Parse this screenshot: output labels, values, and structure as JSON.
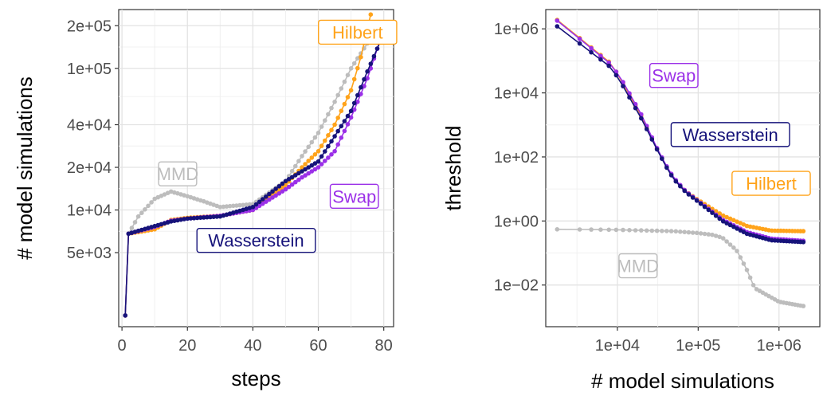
{
  "colors": {
    "Wasserstein": "#16137a",
    "Swap": "#9b30e8",
    "Hilbert": "#ffa31a",
    "MMD": "#bdbdbd"
  },
  "chart_data": [
    {
      "type": "line",
      "xlabel": "steps",
      "ylabel": "# model simulations",
      "x_scale": "linear",
      "y_scale": "log",
      "xlim": [
        -1,
        83
      ],
      "ylim": [
        1500,
        260000
      ],
      "x_ticks": [
        0,
        20,
        40,
        60,
        80
      ],
      "x_tick_labels": [
        "0",
        "20",
        "40",
        "60",
        "80"
      ],
      "y_ticks": [
        5000,
        10000,
        20000,
        40000,
        100000,
        200000
      ],
      "y_tick_labels": [
        "5e+03",
        "1e+04",
        "2e+04",
        "4e+04",
        "1e+05",
        "2e+05"
      ],
      "grid": true,
      "series": [
        {
          "name": "Wasserstein",
          "label_at": [
            41,
            6100
          ],
          "anchors": [
            [
              1,
              1800
            ],
            [
              2,
              6800
            ],
            [
              10,
              7700
            ],
            [
              15,
              8300
            ],
            [
              20,
              8700
            ],
            [
              30,
              9000
            ],
            [
              40,
              10500
            ],
            [
              50,
              16000
            ],
            [
              60,
              22000
            ],
            [
              70,
              50000
            ],
            [
              75,
              95000
            ],
            [
              81,
              200000
            ]
          ]
        },
        {
          "name": "Swap",
          "label_at": [
            71,
            12500
          ],
          "anchors": [
            [
              1,
              1800
            ],
            [
              2,
              6800
            ],
            [
              10,
              7600
            ],
            [
              15,
              8400
            ],
            [
              20,
              8700
            ],
            [
              30,
              9100
            ],
            [
              40,
              10000
            ],
            [
              50,
              14000
            ],
            [
              55,
              17000
            ],
            [
              60,
              20000
            ],
            [
              65,
              26000
            ],
            [
              70,
              45000
            ],
            [
              75,
              85000
            ],
            [
              80,
              190000
            ]
          ]
        },
        {
          "name": "Hilbert",
          "label_at": [
            72,
            180000
          ],
          "anchors": [
            [
              1,
              1800
            ],
            [
              2,
              6800
            ],
            [
              10,
              7300
            ],
            [
              15,
              8500
            ],
            [
              20,
              8800
            ],
            [
              30,
              9100
            ],
            [
              40,
              10000
            ],
            [
              50,
              15000
            ],
            [
              55,
              20000
            ],
            [
              60,
              26000
            ],
            [
              65,
              40000
            ],
            [
              70,
              70000
            ],
            [
              73,
              120000
            ],
            [
              76,
              240000
            ]
          ]
        },
        {
          "name": "MMD",
          "label_at": [
            17,
            18000
          ],
          "anchors": [
            [
              1,
              1800
            ],
            [
              2,
              6800
            ],
            [
              5,
              9000
            ],
            [
              10,
              12000
            ],
            [
              15,
              13500
            ],
            [
              20,
              12500
            ],
            [
              25,
              11500
            ],
            [
              30,
              10500
            ],
            [
              40,
              11000
            ],
            [
              50,
              16000
            ],
            [
              55,
              24000
            ],
            [
              60,
              35000
            ],
            [
              65,
              58000
            ],
            [
              70,
              100000
            ],
            [
              75,
              150000
            ]
          ]
        }
      ]
    },
    {
      "type": "line",
      "xlabel": "# model simulations",
      "ylabel": "threshold",
      "x_scale": "log",
      "y_scale": "log",
      "xlim": [
        1300,
        3200000
      ],
      "ylim": [
        0.0005,
        4000000
      ],
      "x_ticks": [
        10000,
        100000,
        1000000
      ],
      "x_tick_labels": [
        "1e+04",
        "1e+05",
        "1e+06"
      ],
      "y_ticks": [
        0.01,
        1,
        100,
        10000,
        1000000
      ],
      "y_tick_labels": [
        "1e−02",
        "1e+00",
        "1e+02",
        "1e+04",
        "1e+06"
      ],
      "grid": true,
      "series": [
        {
          "name": "Wasserstein",
          "label_at": [
            250000,
            500
          ],
          "anchors": [
            [
              1800,
              1200000
            ],
            [
              8500,
              60000
            ],
            [
              12000,
              15000
            ],
            [
              20000,
              1500
            ],
            [
              30000,
              200
            ],
            [
              40000,
              50
            ],
            [
              50000,
              20
            ],
            [
              70000,
              8
            ],
            [
              100000,
              4
            ],
            [
              200000,
              1
            ],
            [
              400000,
              0.4
            ],
            [
              800000,
              0.25
            ],
            [
              2000000,
              0.22
            ]
          ]
        },
        {
          "name": "Swap",
          "label_at": [
            50000,
            35000
          ],
          "anchors": [
            [
              1800,
              1800000
            ],
            [
              8500,
              75000
            ],
            [
              12000,
              20000
            ],
            [
              20000,
              2000
            ],
            [
              30000,
              220
            ],
            [
              40000,
              55
            ],
            [
              50000,
              22
            ],
            [
              70000,
              8.5
            ],
            [
              100000,
              4.2
            ],
            [
              200000,
              1.1
            ],
            [
              400000,
              0.45
            ],
            [
              800000,
              0.28
            ],
            [
              2000000,
              0.24
            ]
          ]
        },
        {
          "name": "Hilbert",
          "label_at": [
            800000,
            15
          ],
          "anchors": [
            [
              1800,
              1900000
            ],
            [
              8500,
              80000
            ],
            [
              12000,
              18000
            ],
            [
              20000,
              1800
            ],
            [
              30000,
              210
            ],
            [
              40000,
              52
            ],
            [
              50000,
              21
            ],
            [
              70000,
              8.5
            ],
            [
              100000,
              4.5
            ],
            [
              200000,
              1.5
            ],
            [
              400000,
              0.7
            ],
            [
              800000,
              0.5
            ],
            [
              2000000,
              0.48
            ]
          ]
        },
        {
          "name": "MMD",
          "label_at": [
            18000,
            0.04
          ],
          "anchors": [
            [
              1800,
              0.55
            ],
            [
              10000,
              0.53
            ],
            [
              50000,
              0.48
            ],
            [
              100000,
              0.42
            ],
            [
              150000,
              0.37
            ],
            [
              200000,
              0.3
            ],
            [
              300000,
              0.12
            ],
            [
              400000,
              0.03
            ],
            [
              500000,
              0.008
            ],
            [
              1000000,
              0.003
            ],
            [
              2000000,
              0.0022
            ]
          ]
        }
      ]
    }
  ]
}
